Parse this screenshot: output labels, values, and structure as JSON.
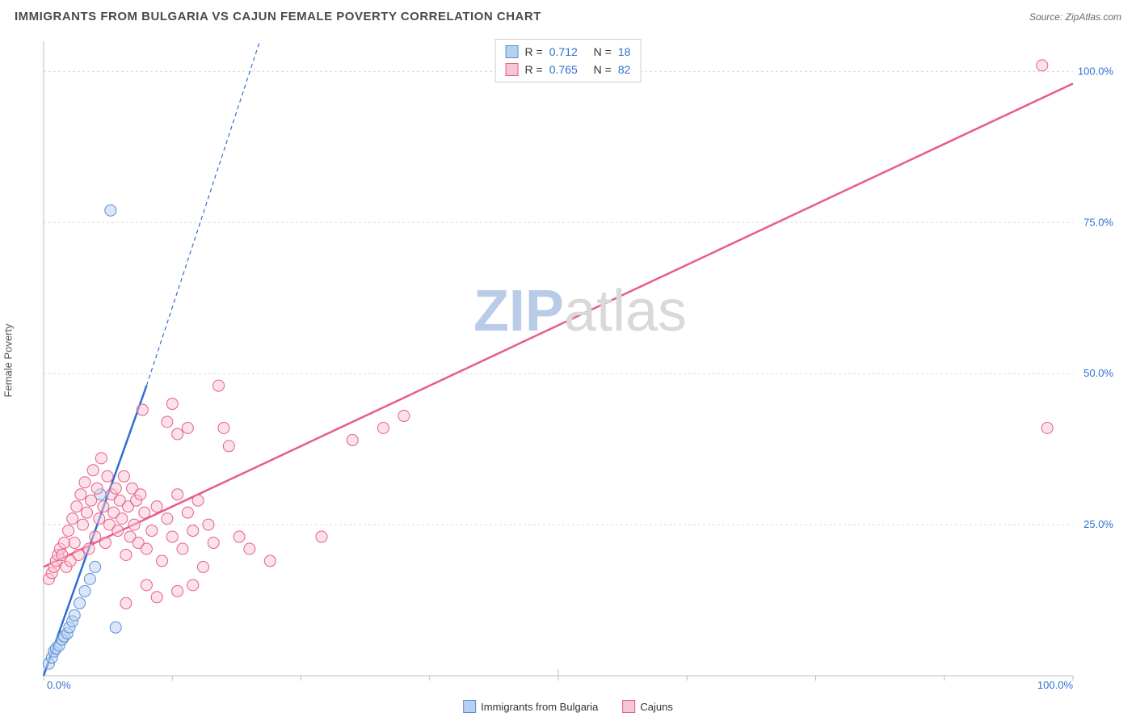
{
  "header": {
    "title": "IMMIGRANTS FROM BULGARIA VS CAJUN FEMALE POVERTY CORRELATION CHART",
    "source": "Source: ZipAtlas.com"
  },
  "ylabel": "Female Poverty",
  "watermark": {
    "prefix": "ZIP",
    "suffix": "atlas"
  },
  "legend_bottom": {
    "series1": {
      "label": "Immigrants from Bulgaria",
      "fill": "#b8d0ef",
      "stroke": "#5a8fd6"
    },
    "series2": {
      "label": "Cajuns",
      "fill": "#f7c6d4",
      "stroke": "#e85d88"
    }
  },
  "stats": {
    "series1": {
      "r_label": "R =",
      "r_value": "0.712",
      "n_label": "N =",
      "n_value": "18",
      "swatch_fill": "#b8d0ef",
      "swatch_stroke": "#5a8fd6"
    },
    "series2": {
      "r_label": "R =",
      "r_value": "0.765",
      "n_label": "N =",
      "n_value": "82",
      "swatch_fill": "#f7c6d4",
      "swatch_stroke": "#e85d88"
    }
  },
  "chart": {
    "type": "scatter",
    "xlim": [
      0,
      100
    ],
    "ylim": [
      0,
      105
    ],
    "x_ticks": [
      0,
      50,
      100
    ],
    "x_tick_labels": [
      "0.0%",
      "",
      "100.0%"
    ],
    "y_ticks": [
      25,
      50,
      75,
      100
    ],
    "y_tick_labels": [
      "25.0%",
      "50.0%",
      "75.0%",
      "100.0%"
    ],
    "grid_color": "#dcdcdc",
    "axis_color": "#bcbcbc",
    "background": "#ffffff",
    "minor_tick_interval_x": 12.5,
    "marker_radius": 7,
    "series": [
      {
        "name": "bulgaria",
        "fill": "#b8d0ef",
        "stroke": "#5a8fd6",
        "fill_opacity": 0.5,
        "trend": {
          "x1": 0,
          "y1": 0,
          "x2": 10,
          "y2": 48,
          "stroke": "#2f6fd0",
          "width": 2.5,
          "ext_x2": 21,
          "ext_y2": 105,
          "dash": "5 4"
        },
        "points": [
          [
            0.5,
            2
          ],
          [
            0.8,
            3
          ],
          [
            1.0,
            4
          ],
          [
            1.2,
            4.5
          ],
          [
            1.5,
            5
          ],
          [
            1.8,
            6
          ],
          [
            2.0,
            6.5
          ],
          [
            2.3,
            7
          ],
          [
            2.5,
            8
          ],
          [
            2.8,
            9
          ],
          [
            3.0,
            10
          ],
          [
            3.5,
            12
          ],
          [
            4.0,
            14
          ],
          [
            4.5,
            16
          ],
          [
            5.0,
            18
          ],
          [
            5.5,
            30
          ],
          [
            7.0,
            8
          ],
          [
            6.5,
            77
          ]
        ]
      },
      {
        "name": "cajuns",
        "fill": "#f7c6d4",
        "stroke": "#e85d88",
        "fill_opacity": 0.5,
        "trend": {
          "x1": 0,
          "y1": 18,
          "x2": 100,
          "y2": 98,
          "stroke": "#e85d88",
          "width": 2.5
        },
        "points": [
          [
            0.5,
            16
          ],
          [
            0.8,
            17
          ],
          [
            1.0,
            18
          ],
          [
            1.2,
            19
          ],
          [
            1.4,
            20
          ],
          [
            1.6,
            21
          ],
          [
            1.8,
            20
          ],
          [
            2.0,
            22
          ],
          [
            2.2,
            18
          ],
          [
            2.4,
            24
          ],
          [
            2.6,
            19
          ],
          [
            2.8,
            26
          ],
          [
            3.0,
            22
          ],
          [
            3.2,
            28
          ],
          [
            3.4,
            20
          ],
          [
            3.6,
            30
          ],
          [
            3.8,
            25
          ],
          [
            4.0,
            32
          ],
          [
            4.2,
            27
          ],
          [
            4.4,
            21
          ],
          [
            4.6,
            29
          ],
          [
            4.8,
            34
          ],
          [
            5.0,
            23
          ],
          [
            5.2,
            31
          ],
          [
            5.4,
            26
          ],
          [
            5.6,
            36
          ],
          [
            5.8,
            28
          ],
          [
            6.0,
            22
          ],
          [
            6.2,
            33
          ],
          [
            6.4,
            25
          ],
          [
            6.6,
            30
          ],
          [
            6.8,
            27
          ],
          [
            7.0,
            31
          ],
          [
            7.2,
            24
          ],
          [
            7.4,
            29
          ],
          [
            7.6,
            26
          ],
          [
            7.8,
            33
          ],
          [
            8.0,
            20
          ],
          [
            8.2,
            28
          ],
          [
            8.4,
            23
          ],
          [
            8.6,
            31
          ],
          [
            8.8,
            25
          ],
          [
            9.0,
            29
          ],
          [
            9.2,
            22
          ],
          [
            9.4,
            30
          ],
          [
            9.6,
            44
          ],
          [
            9.8,
            27
          ],
          [
            10.0,
            21
          ],
          [
            10.5,
            24
          ],
          [
            11.0,
            28
          ],
          [
            11.5,
            19
          ],
          [
            12.0,
            26
          ],
          [
            12.5,
            23
          ],
          [
            13.0,
            30
          ],
          [
            13.5,
            21
          ],
          [
            14.0,
            27
          ],
          [
            14.5,
            24
          ],
          [
            15.0,
            29
          ],
          [
            15.5,
            18
          ],
          [
            16.0,
            25
          ],
          [
            16.5,
            22
          ],
          [
            17.0,
            48
          ],
          [
            17.5,
            41
          ],
          [
            18.0,
            38
          ],
          [
            12.0,
            42
          ],
          [
            12.5,
            45
          ],
          [
            13.0,
            40
          ],
          [
            14.0,
            41
          ],
          [
            19.0,
            23
          ],
          [
            20.0,
            21
          ],
          [
            22.0,
            19
          ],
          [
            27.0,
            23
          ],
          [
            30.0,
            39
          ],
          [
            33.0,
            41
          ],
          [
            35.0,
            43
          ],
          [
            13.0,
            14
          ],
          [
            14.5,
            15
          ],
          [
            10.0,
            15
          ],
          [
            11.0,
            13
          ],
          [
            8.0,
            12
          ],
          [
            97.0,
            101
          ],
          [
            97.5,
            41
          ]
        ]
      }
    ]
  }
}
